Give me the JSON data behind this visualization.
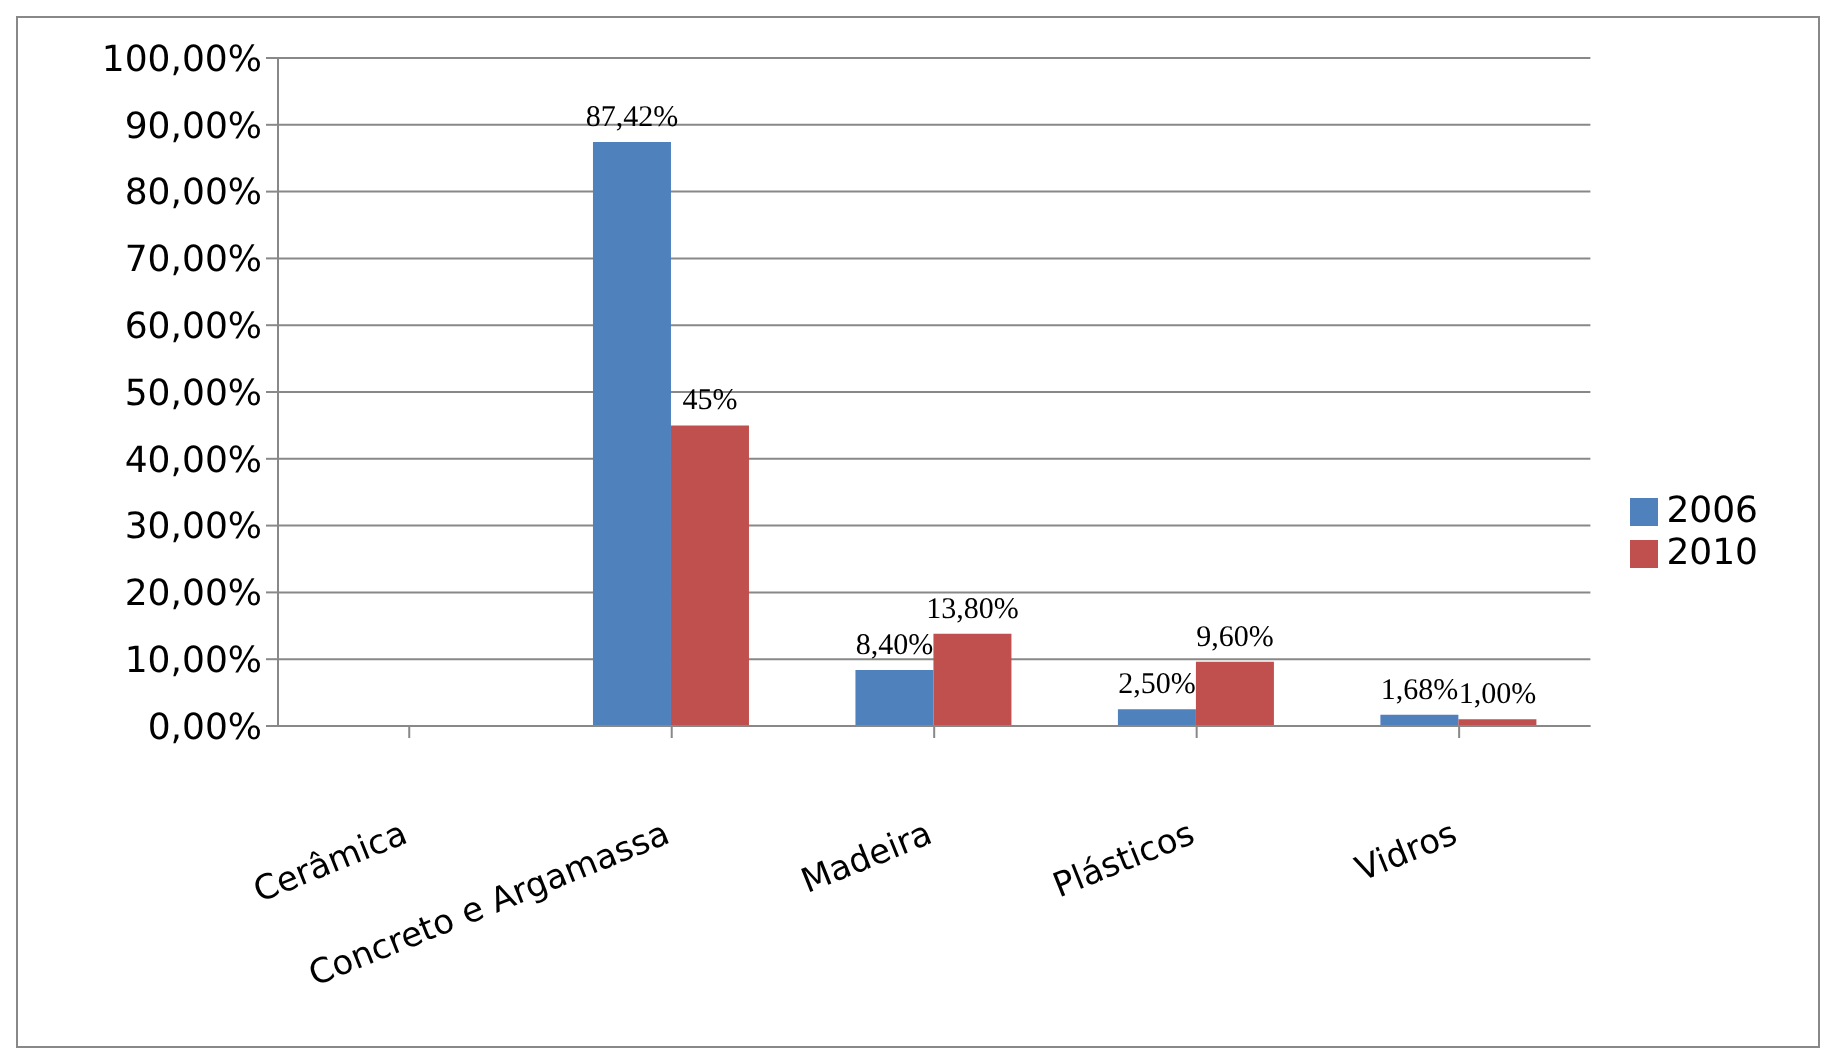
{
  "chart_data": {
    "type": "bar",
    "categories": [
      "Cerâmica",
      "Concreto e Argamassa",
      "Madeira",
      "Plásticos",
      "Vidros"
    ],
    "series": [
      {
        "name": "2006",
        "color": "#4f81bd",
        "values": [
          null,
          87.42,
          8.4,
          2.5,
          1.68
        ],
        "value_labels": [
          null,
          "87,42%",
          "8,40%",
          "2,50%",
          "1,68%"
        ]
      },
      {
        "name": "2010",
        "color": "#c0504d",
        "values": [
          null,
          45,
          13.8,
          9.6,
          1.0
        ],
        "value_labels": [
          null,
          "45%",
          "13,80%",
          "9,60%",
          "1,00%"
        ]
      }
    ],
    "ylim": [
      0,
      100
    ],
    "yticks": [
      {
        "value": 0,
        "label": "0,00%"
      },
      {
        "value": 10,
        "label": "10,00%"
      },
      {
        "value": 20,
        "label": "20,00%"
      },
      {
        "value": 30,
        "label": "30,00%"
      },
      {
        "value": 40,
        "label": "40,00%"
      },
      {
        "value": 50,
        "label": "50,00%"
      },
      {
        "value": 60,
        "label": "60,00%"
      },
      {
        "value": 70,
        "label": "70,00%"
      },
      {
        "value": 80,
        "label": "80,00%"
      },
      {
        "value": 90,
        "label": "90,00%"
      },
      {
        "value": 100,
        "label": "100,00%"
      }
    ],
    "grid": "y",
    "legend": "right"
  }
}
